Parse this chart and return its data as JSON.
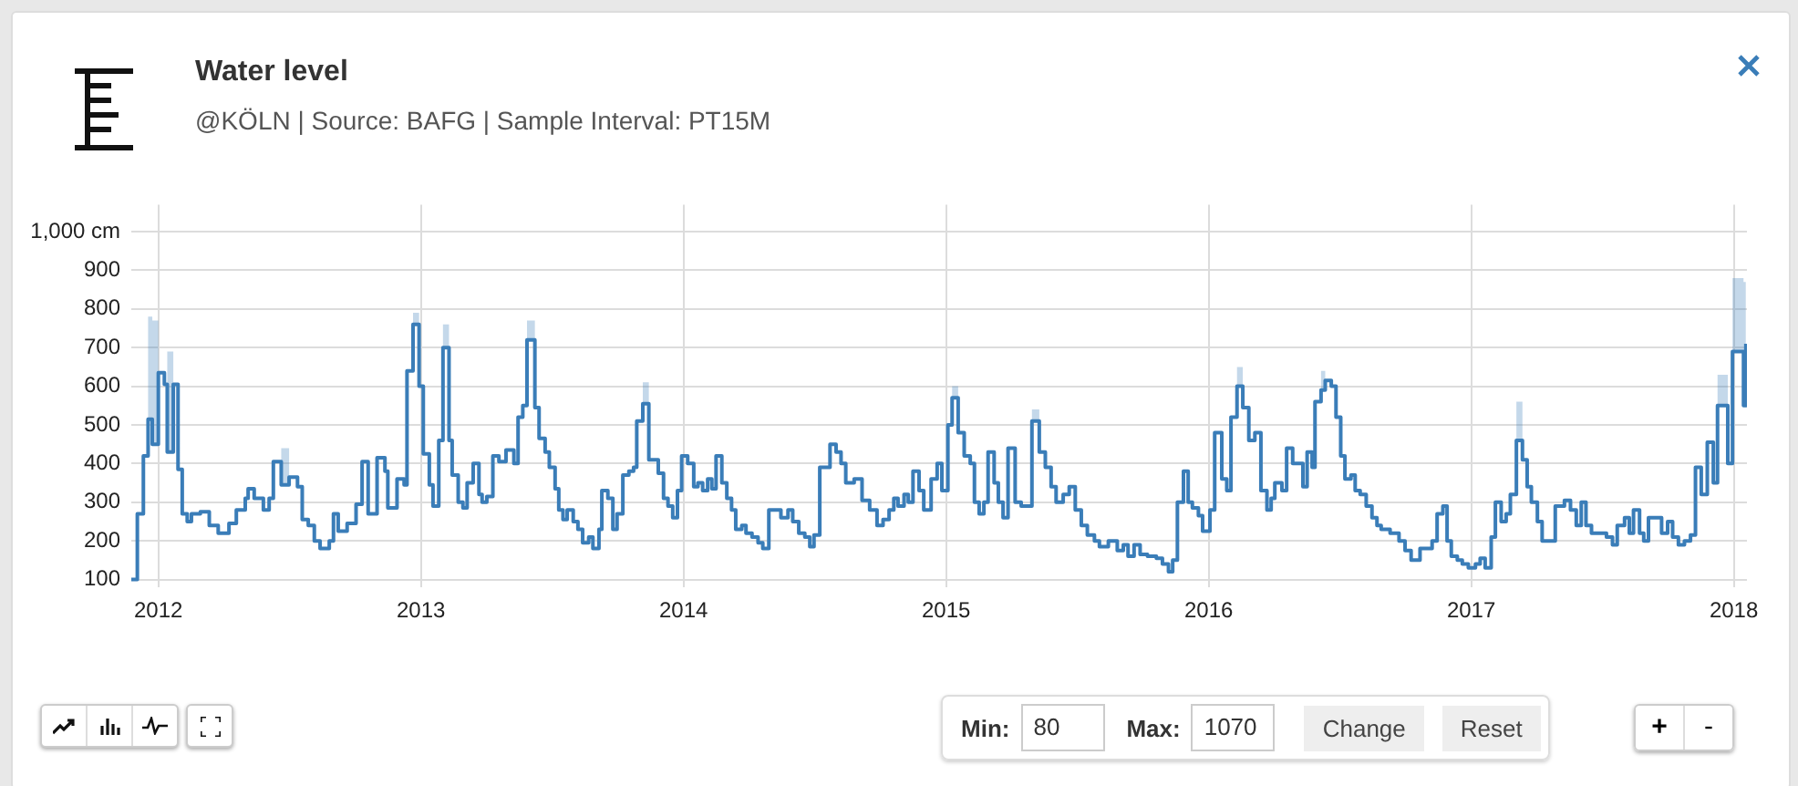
{
  "chart_data": {
    "type": "step",
    "title": "Water level",
    "subtitle": "@KÖLN | Source: BAFG | Sample Interval: PT15M",
    "x": [
      2011.897,
      2011.92,
      2011.943,
      2011.961,
      2011.977,
      2012.0,
      2012.023,
      2012.034,
      2012.057,
      2012.075,
      2012.091,
      2012.11,
      2012.126,
      2012.16,
      2012.194,
      2012.228,
      2012.269,
      2012.297,
      2012.331,
      2012.342,
      2012.365,
      2012.4,
      2012.422,
      2012.438,
      2012.468,
      2012.498,
      2012.53,
      2012.548,
      2012.571,
      2012.594,
      2012.616,
      2012.651,
      2012.667,
      2012.685,
      2012.719,
      2012.753,
      2012.776,
      2012.799,
      2012.833,
      2012.863,
      2012.874,
      2012.909,
      2012.936,
      2012.947,
      2012.97,
      2012.993,
      2013.009,
      2013.032,
      2013.046,
      2013.068,
      2013.084,
      2013.107,
      2013.119,
      2013.142,
      2013.16,
      2013.176,
      2013.199,
      2013.221,
      2013.233,
      2013.251,
      2013.274,
      2013.297,
      2013.324,
      2013.354,
      2013.37,
      2013.388,
      2013.404,
      2013.434,
      2013.45,
      2013.473,
      2013.489,
      2013.511,
      2013.525,
      2013.541,
      2013.557,
      2013.58,
      2013.598,
      2013.616,
      2013.639,
      2013.655,
      2013.678,
      2013.689,
      2013.712,
      2013.731,
      2013.747,
      2013.769,
      2013.792,
      2013.81,
      2013.822,
      2013.845,
      2013.868,
      2013.904,
      2013.924,
      2013.941,
      2013.959,
      2013.977,
      2013.993,
      2014.016,
      2014.039,
      2014.055,
      2014.073,
      2014.092,
      2014.108,
      2014.124,
      2014.146,
      2014.165,
      2014.183,
      2014.199,
      2014.222,
      2014.238,
      2014.261,
      2014.284,
      2014.302,
      2014.325,
      2014.371,
      2014.398,
      2014.416,
      2014.439,
      2014.462,
      2014.481,
      2014.497,
      2014.519,
      2014.558,
      2014.581,
      2014.6,
      2014.618,
      2014.65,
      2014.68,
      2014.709,
      2014.737,
      2014.76,
      2014.783,
      2014.801,
      2014.817,
      2014.84,
      2014.856,
      2014.874,
      2014.897,
      2014.915,
      2014.943,
      2014.966,
      2014.984,
      2015.007,
      2015.023,
      2015.046,
      2015.069,
      2015.092,
      2015.108,
      2015.126,
      2015.144,
      2015.16,
      2015.183,
      2015.199,
      2015.217,
      2015.236,
      2015.263,
      2015.286,
      2015.327,
      2015.355,
      2015.378,
      2015.4,
      2015.419,
      2015.446,
      2015.469,
      2015.492,
      2015.515,
      2015.538,
      2015.565,
      2015.584,
      2015.618,
      2015.652,
      2015.675,
      2015.693,
      2015.716,
      2015.739,
      2015.767,
      2015.801,
      2015.824,
      2015.847,
      2015.863,
      2015.881,
      2015.904,
      2015.922,
      2015.938,
      2015.961,
      2015.977,
      2016.005,
      2016.023,
      2016.05,
      2016.069,
      2016.085,
      2016.108,
      2016.13,
      2016.153,
      2016.176,
      2016.199,
      2016.222,
      2016.238,
      2016.252,
      2016.279,
      2016.297,
      2016.32,
      2016.359,
      2016.375,
      2016.394,
      2016.405,
      2016.428,
      2016.444,
      2016.467,
      2016.485,
      2016.503,
      2016.519,
      2016.542,
      2016.558,
      2016.577,
      2016.6,
      2016.622,
      2016.641,
      2016.657,
      2016.691,
      2016.725,
      2016.748,
      2016.771,
      2016.805,
      2016.851,
      2016.87,
      2016.892,
      2016.908,
      2016.924,
      2016.947,
      2016.966,
      2016.989,
      2017.016,
      2017.034,
      2017.053,
      2017.076,
      2017.092,
      2017.114,
      2017.133,
      2017.149,
      2017.172,
      2017.195,
      2017.213,
      2017.229,
      2017.252,
      2017.27,
      2017.32,
      2017.355,
      2017.378,
      2017.4,
      2017.419,
      2017.437,
      2017.458,
      2017.515,
      2017.538,
      2017.556,
      2017.584,
      2017.602,
      2017.618,
      2017.641,
      2017.657,
      2017.675,
      2017.725,
      2017.748,
      2017.767,
      2017.789,
      2017.812,
      2017.835,
      2017.854,
      2017.876,
      2017.899,
      2017.922,
      2017.938,
      2017.977,
      2017.995,
      2018.037,
      2018.046
    ],
    "series": [
      {
        "color": "#3a7db8",
        "values": [
          100,
          270,
          420,
          515,
          450,
          635,
          605,
          430,
          605,
          385,
          270,
          250,
          270,
          275,
          240,
          220,
          245,
          280,
          310,
          335,
          310,
          280,
          310,
          405,
          345,
          365,
          340,
          255,
          240,
          200,
          180,
          200,
          270,
          225,
          245,
          295,
          405,
          270,
          415,
          380,
          285,
          360,
          345,
          640,
          760,
          600,
          425,
          345,
          290,
          460,
          700,
          460,
          370,
          300,
          285,
          350,
          400,
          320,
          300,
          315,
          420,
          405,
          435,
          400,
          520,
          550,
          720,
          545,
          465,
          430,
          390,
          335,
          280,
          255,
          280,
          250,
          230,
          195,
          210,
          180,
          230,
          330,
          310,
          230,
          270,
          370,
          380,
          390,
          510,
          555,
          410,
          375,
          310,
          290,
          260,
          330,
          420,
          400,
          340,
          350,
          330,
          360,
          335,
          420,
          350,
          310,
          280,
          230,
          240,
          220,
          210,
          195,
          180,
          280,
          260,
          280,
          250,
          220,
          210,
          185,
          215,
          390,
          450,
          430,
          400,
          350,
          360,
          305,
          280,
          240,
          255,
          280,
          310,
          290,
          320,
          300,
          380,
          330,
          280,
          360,
          400,
          330,
          500,
          570,
          480,
          420,
          400,
          300,
          270,
          300,
          430,
          350,
          300,
          260,
          440,
          300,
          290,
          510,
          430,
          390,
          340,
          300,
          320,
          340,
          280,
          240,
          215,
          200,
          185,
          200,
          175,
          190,
          160,
          190,
          165,
          160,
          155,
          140,
          120,
          150,
          300,
          380,
          300,
          285,
          265,
          225,
          280,
          480,
          360,
          330,
          520,
          600,
          545,
          460,
          480,
          330,
          280,
          310,
          350,
          330,
          440,
          400,
          340,
          430,
          390,
          560,
          590,
          615,
          600,
          520,
          420,
          360,
          370,
          330,
          320,
          290,
          260,
          240,
          230,
          220,
          200,
          175,
          150,
          180,
          200,
          270,
          290,
          200,
          160,
          150,
          140,
          130,
          140,
          155,
          130,
          210,
          300,
          250,
          270,
          320,
          460,
          410,
          340,
          300,
          250,
          200,
          290,
          305,
          280,
          240,
          300,
          240,
          220,
          210,
          190,
          240,
          260,
          220,
          280,
          220,
          200,
          260,
          220,
          250,
          210,
          190,
          200,
          215,
          390,
          320,
          455,
          350,
          550,
          400,
          690,
          550,
          710
        ],
        "lower": [
          100,
          270,
          420,
          515,
          450,
          635,
          605,
          430,
          605,
          385,
          270,
          250,
          270,
          275,
          240,
          220,
          245,
          280,
          310,
          335,
          310,
          280,
          310,
          405,
          345,
          365,
          340,
          255,
          240,
          200,
          180,
          200,
          270,
          225,
          245,
          295,
          405,
          270,
          415,
          380,
          285,
          360,
          345,
          640,
          760,
          600,
          425,
          345,
          290,
          460,
          700,
          460,
          370,
          300,
          285,
          350,
          400,
          320,
          300,
          315,
          420,
          405,
          435,
          400,
          520,
          550,
          720,
          545,
          465,
          430,
          390,
          335,
          280,
          255,
          280,
          250,
          230,
          195,
          210,
          180,
          230,
          330,
          310,
          230,
          270,
          370,
          380,
          390,
          510,
          555,
          410,
          375,
          310,
          290,
          260,
          330,
          420,
          400,
          340,
          350,
          330,
          360,
          335,
          420,
          350,
          310,
          280,
          230,
          240,
          220,
          210,
          195,
          180,
          280,
          260,
          280,
          250,
          220,
          210,
          185,
          215,
          390,
          450,
          430,
          400,
          350,
          360,
          305,
          280,
          240,
          255,
          280,
          310,
          290,
          320,
          300,
          380,
          330,
          280,
          360,
          400,
          330,
          500,
          570,
          480,
          420,
          400,
          300,
          270,
          300,
          430,
          350,
          300,
          260,
          440,
          300,
          290,
          510,
          430,
          390,
          340,
          300,
          320,
          340,
          280,
          240,
          215,
          200,
          185,
          200,
          175,
          190,
          160,
          190,
          165,
          160,
          155,
          140,
          120,
          150,
          300,
          380,
          300,
          285,
          265,
          225,
          280,
          480,
          360,
          330,
          520,
          600,
          545,
          460,
          480,
          330,
          280,
          310,
          350,
          330,
          440,
          400,
          340,
          430,
          390,
          560,
          590,
          615,
          600,
          520,
          420,
          360,
          370,
          330,
          320,
          290,
          260,
          240,
          230,
          220,
          200,
          175,
          150,
          180,
          200,
          270,
          290,
          200,
          160,
          150,
          140,
          130,
          140,
          155,
          130,
          210,
          300,
          250,
          270,
          320,
          460,
          410,
          340,
          300,
          250,
          200,
          290,
          305,
          280,
          240,
          300,
          240,
          220,
          210,
          190,
          240,
          260,
          220,
          280,
          220,
          200,
          260,
          220,
          250,
          210,
          190,
          200,
          215,
          390,
          320,
          455,
          350,
          550,
          400,
          690,
          550,
          710
        ],
        "upper": [
          100,
          270,
          420,
          780,
          770,
          635,
          605,
          690,
          605,
          385,
          270,
          250,
          270,
          275,
          240,
          220,
          245,
          280,
          310,
          335,
          310,
          280,
          310,
          405,
          440,
          365,
          340,
          255,
          240,
          200,
          180,
          200,
          270,
          225,
          245,
          295,
          405,
          270,
          415,
          380,
          285,
          360,
          345,
          640,
          790,
          600,
          425,
          345,
          290,
          460,
          760,
          460,
          370,
          300,
          285,
          350,
          400,
          320,
          300,
          315,
          420,
          405,
          435,
          400,
          520,
          550,
          770,
          545,
          465,
          430,
          390,
          335,
          280,
          255,
          280,
          250,
          230,
          195,
          210,
          180,
          230,
          330,
          310,
          230,
          270,
          370,
          380,
          390,
          510,
          610,
          410,
          375,
          310,
          290,
          260,
          330,
          420,
          400,
          340,
          350,
          330,
          360,
          335,
          420,
          350,
          310,
          280,
          230,
          240,
          220,
          210,
          195,
          180,
          280,
          260,
          280,
          250,
          220,
          210,
          185,
          215,
          390,
          450,
          430,
          400,
          350,
          360,
          305,
          280,
          240,
          255,
          280,
          310,
          290,
          320,
          300,
          380,
          330,
          280,
          360,
          400,
          330,
          500,
          600,
          480,
          420,
          400,
          300,
          270,
          300,
          430,
          350,
          300,
          260,
          440,
          300,
          290,
          540,
          430,
          390,
          340,
          300,
          320,
          340,
          280,
          240,
          215,
          200,
          185,
          200,
          175,
          190,
          160,
          190,
          165,
          160,
          155,
          140,
          120,
          150,
          300,
          380,
          300,
          285,
          265,
          225,
          280,
          480,
          360,
          330,
          520,
          650,
          545,
          460,
          480,
          330,
          280,
          310,
          350,
          330,
          440,
          400,
          340,
          430,
          390,
          560,
          640,
          615,
          600,
          520,
          420,
          360,
          370,
          330,
          320,
          290,
          260,
          240,
          230,
          220,
          200,
          175,
          150,
          180,
          200,
          270,
          290,
          200,
          160,
          150,
          140,
          130,
          140,
          155,
          130,
          210,
          300,
          250,
          270,
          320,
          560,
          410,
          340,
          300,
          250,
          200,
          290,
          305,
          280,
          240,
          300,
          240,
          220,
          210,
          190,
          240,
          260,
          220,
          280,
          220,
          200,
          260,
          220,
          250,
          210,
          190,
          200,
          215,
          390,
          320,
          455,
          350,
          630,
          400,
          880,
          870,
          710
        ]
      }
    ],
    "xlim": [
      2011.897,
      2018.05
    ],
    "xticks": [
      2012,
      2013,
      2014,
      2015,
      2016,
      2017,
      2018
    ],
    "ylim": [
      80,
      1070
    ],
    "yticks": [
      100,
      200,
      300,
      400,
      500,
      600,
      700,
      800,
      900,
      {
        "value": 1000,
        "label": "1,000 cm"
      }
    ],
    "grid": true,
    "legend": false,
    "marker": "none",
    "annotations": [
      "Min:",
      "80",
      "Max:",
      "1070",
      "Change",
      "Reset",
      "+",
      "-"
    ]
  }
}
